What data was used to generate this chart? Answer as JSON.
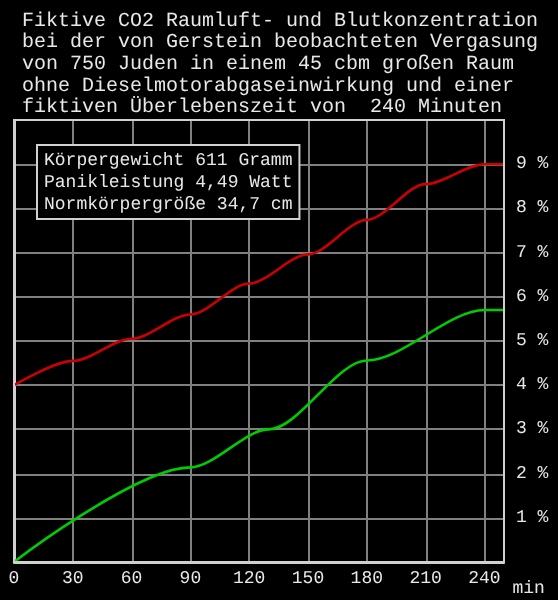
{
  "chart_data": {
    "type": "line",
    "title": "Fiktive CO2 Raumluft- und Blutkonzentration\nbei der von Gerstein beobachteten Vergasung\nvon 750 Juden in einem 45 cbm großen Raum\nohne Dieselmotorabgaseinwirkung und einer\nfiktiven Überlebenszeit von  240 Minuten",
    "xlabel": "min",
    "annotations": [
      "Körpergewicht 611 Gramm\nPanikleistung 4,49 Watt\nNormkörpergröße 34,7 cm"
    ],
    "x": [
      0,
      30,
      60,
      90,
      120,
      150,
      180,
      210,
      240,
      250
    ],
    "series": [
      {
        "color": "#00cc00",
        "x": [
          0,
          90,
          130,
          180,
          240,
          250
        ],
        "values": [
          0,
          2.14,
          3,
          4.56,
          5.7,
          5.7
        ]
      },
      {
        "color": "#cc0000",
        "values": [
          4.0,
          4.55,
          5.05,
          5.6,
          6.3,
          6.96,
          7.74,
          8.55,
          9.0,
          9.0
        ]
      }
    ],
    "xlim": [
      0,
      250
    ],
    "xticks": [
      0,
      30,
      60,
      90,
      120,
      150,
      180,
      210,
      240
    ],
    "ylim": [
      0,
      10
    ],
    "yticks": [
      {
        "value": 1,
        "label": "1 %"
      },
      {
        "value": 2,
        "label": "2 %"
      },
      {
        "value": 3,
        "label": "3 %"
      },
      {
        "value": 4,
        "label": "4 %"
      },
      {
        "value": 5,
        "label": "5 %"
      },
      {
        "value": 6,
        "label": "6 %"
      },
      {
        "value": 7,
        "label": "7 %"
      },
      {
        "value": 8,
        "label": "8 %"
      },
      {
        "value": 9,
        "label": "9 %"
      }
    ],
    "grid": true,
    "marker": "none",
    "line_style": "solid"
  }
}
